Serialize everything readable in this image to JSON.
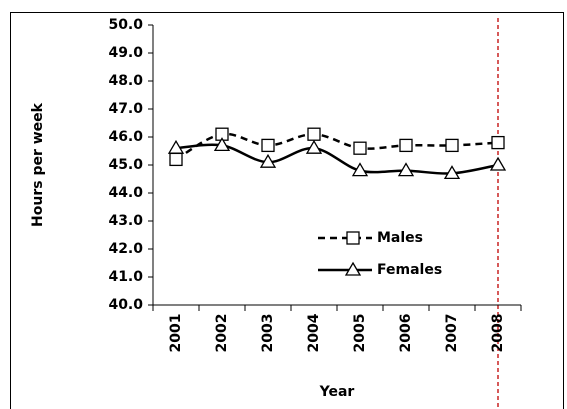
{
  "chart_data": {
    "type": "line",
    "y_label": "Hours per week",
    "x_label": "Year",
    "categories": [
      "2001",
      "2002",
      "2003",
      "2004",
      "2005",
      "2006",
      "2007",
      "2008"
    ],
    "series": [
      {
        "name": "Males",
        "color": "#000000",
        "line_style": "dashed",
        "marker": "square",
        "values": [
          45.2,
          46.1,
          45.7,
          46.1,
          45.6,
          45.7,
          45.7,
          45.8
        ]
      },
      {
        "name": "Females",
        "color": "#000000",
        "line_style": "solid",
        "marker": "triangle",
        "values": [
          45.6,
          45.7,
          45.1,
          45.6,
          44.8,
          44.8,
          44.7,
          45.0
        ]
      }
    ],
    "ylim": [
      40,
      50
    ],
    "yticks": [
      {
        "value": 40,
        "label": "40.0"
      },
      {
        "value": 41,
        "label": "41.0"
      },
      {
        "value": 42,
        "label": "42.0"
      },
      {
        "value": 43,
        "label": "43.0"
      },
      {
        "value": 44,
        "label": "44.0"
      },
      {
        "value": 45,
        "label": "45.0"
      },
      {
        "value": 46,
        "label": "46.0"
      },
      {
        "value": 47,
        "label": "47.0"
      },
      {
        "value": 48,
        "label": "48.0"
      },
      {
        "value": 49,
        "label": "49.0"
      },
      {
        "value": 50,
        "label": "50.0"
      }
    ],
    "grid": false,
    "legend_position": "lower right"
  }
}
